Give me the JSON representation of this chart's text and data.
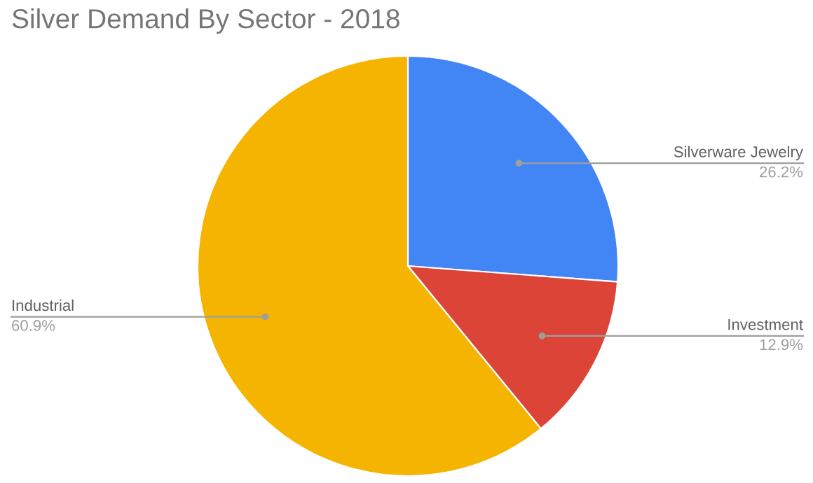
{
  "chart_data": {
    "type": "pie",
    "title": "Silver Demand By Sector - 2018",
    "categories": [
      "Silverware Jewelry",
      "Investment",
      "Industrial"
    ],
    "values": [
      26.2,
      12.9,
      60.9
    ],
    "value_labels": [
      "26.2%",
      "12.9%",
      "60.9%"
    ],
    "colors": [
      "#4285f4",
      "#db4437",
      "#f4b400"
    ]
  }
}
